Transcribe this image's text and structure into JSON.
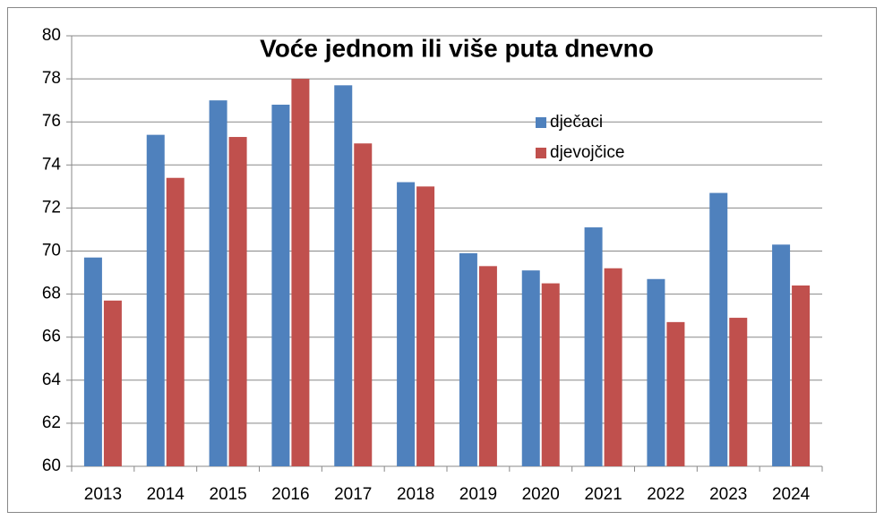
{
  "chart_data": {
    "type": "bar",
    "title": "Voće jednom ili više puta dnevno",
    "categories": [
      "2013",
      "2014",
      "2015",
      "2016",
      "2017",
      "2018",
      "2019",
      "2020",
      "2021",
      "2022",
      "2023",
      "2024"
    ],
    "series": [
      {
        "name": "dječaci",
        "color": "#4f81bd",
        "values": [
          69.7,
          75.4,
          77.0,
          76.8,
          77.7,
          73.2,
          69.9,
          69.1,
          71.1,
          68.7,
          72.7,
          70.3
        ]
      },
      {
        "name": "djevojčice",
        "color": "#c0504d",
        "values": [
          67.7,
          73.4,
          75.3,
          78.0,
          75.0,
          73.0,
          69.3,
          68.5,
          69.2,
          66.7,
          66.9,
          68.4
        ]
      }
    ],
    "ylim": [
      60,
      80
    ],
    "yticks": [
      60,
      62,
      64,
      66,
      68,
      70,
      72,
      74,
      76,
      78,
      80
    ],
    "grid": true,
    "legend": "upper right"
  }
}
